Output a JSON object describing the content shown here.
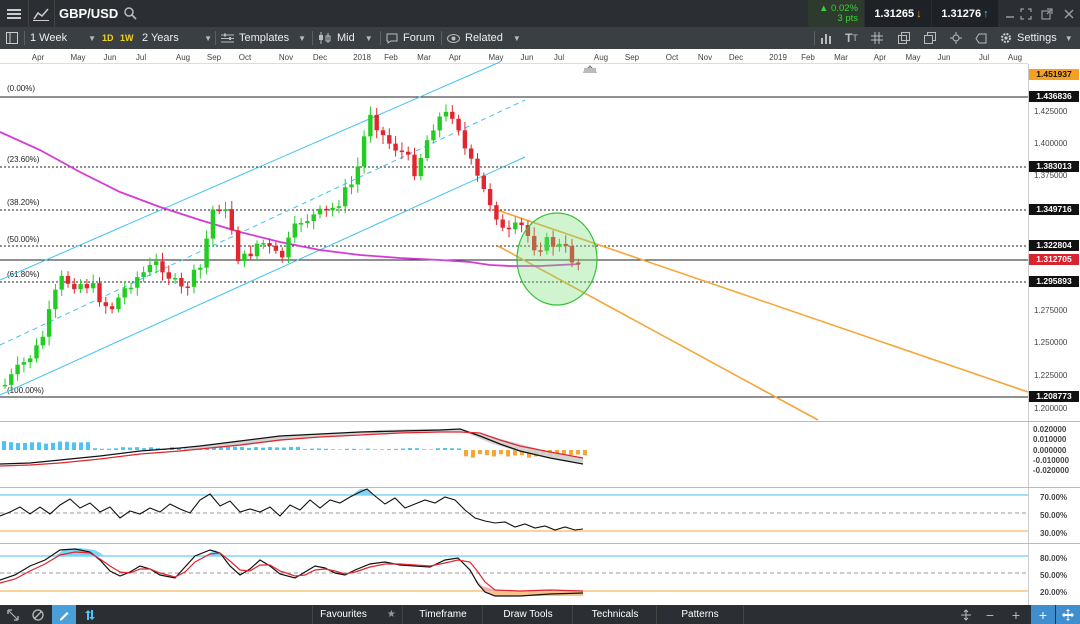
{
  "header": {
    "symbol": "GBP/USD",
    "change_pct": "▲ 0.02%",
    "change_pts": "3 pts",
    "sell_price": "1.31265",
    "buy_price": "1.31276"
  },
  "toolbar": {
    "interval": "1 Week",
    "quick_1d": "1D",
    "quick_1w": "1W",
    "range": "2 Years",
    "templates": "Templates",
    "price_type": "Mid",
    "forum": "Forum",
    "related": "Related",
    "settings": "Settings"
  },
  "time_axis": [
    "Apr",
    "May",
    "Jun",
    "Jul",
    "Aug",
    "Sep",
    "Oct",
    "Nov",
    "Dec",
    "2018",
    "Feb",
    "Mar",
    "Apr",
    "May",
    "Jun",
    "Jul",
    "Aug",
    "Sep",
    "Oct",
    "Nov",
    "Dec",
    "2019",
    "Feb",
    "Mar",
    "Apr",
    "May",
    "Jun",
    "Jul",
    "Aug"
  ],
  "fib_labels": [
    "(0.00%)",
    "(23.60%)",
    "(38.20%)",
    "(50.00%)",
    "(61.80%)",
    "(100.00%)"
  ],
  "price_axis": [
    "1.425000",
    "1.400000",
    "1.375000",
    "1.275000",
    "1.250000",
    "1.225000",
    "1.200000"
  ],
  "price_tags": {
    "top": "1.451937",
    "fib0": "1.436836",
    "fib236": "1.383013",
    "fib382": "1.349716",
    "fib50": "1.322804",
    "current": "1.312705",
    "fib618": "1.295893",
    "fib100": "1.208773"
  },
  "macd_axis": [
    "0.020000",
    "0.010000",
    "0.000000",
    "-0.010000",
    "-0.020000"
  ],
  "rsi_axis": [
    "70.00%",
    "50.00%",
    "30.00%"
  ],
  "stoch_axis": [
    "80.00%",
    "50.00%",
    "20.00%"
  ],
  "bottom": {
    "favourites": "Favourites",
    "timeframe": "Timeframe",
    "draw_tools": "Draw Tools",
    "technicals": "Technicals",
    "patterns": "Patterns"
  },
  "colors": {
    "bull": "#22cc22",
    "bear": "#e0262e",
    "ma": "#d63ad6",
    "channel": "#3ec3f0",
    "trend": "#f5a63a",
    "current_tag": "#d9232d",
    "top_tag": "#f5a020"
  }
}
